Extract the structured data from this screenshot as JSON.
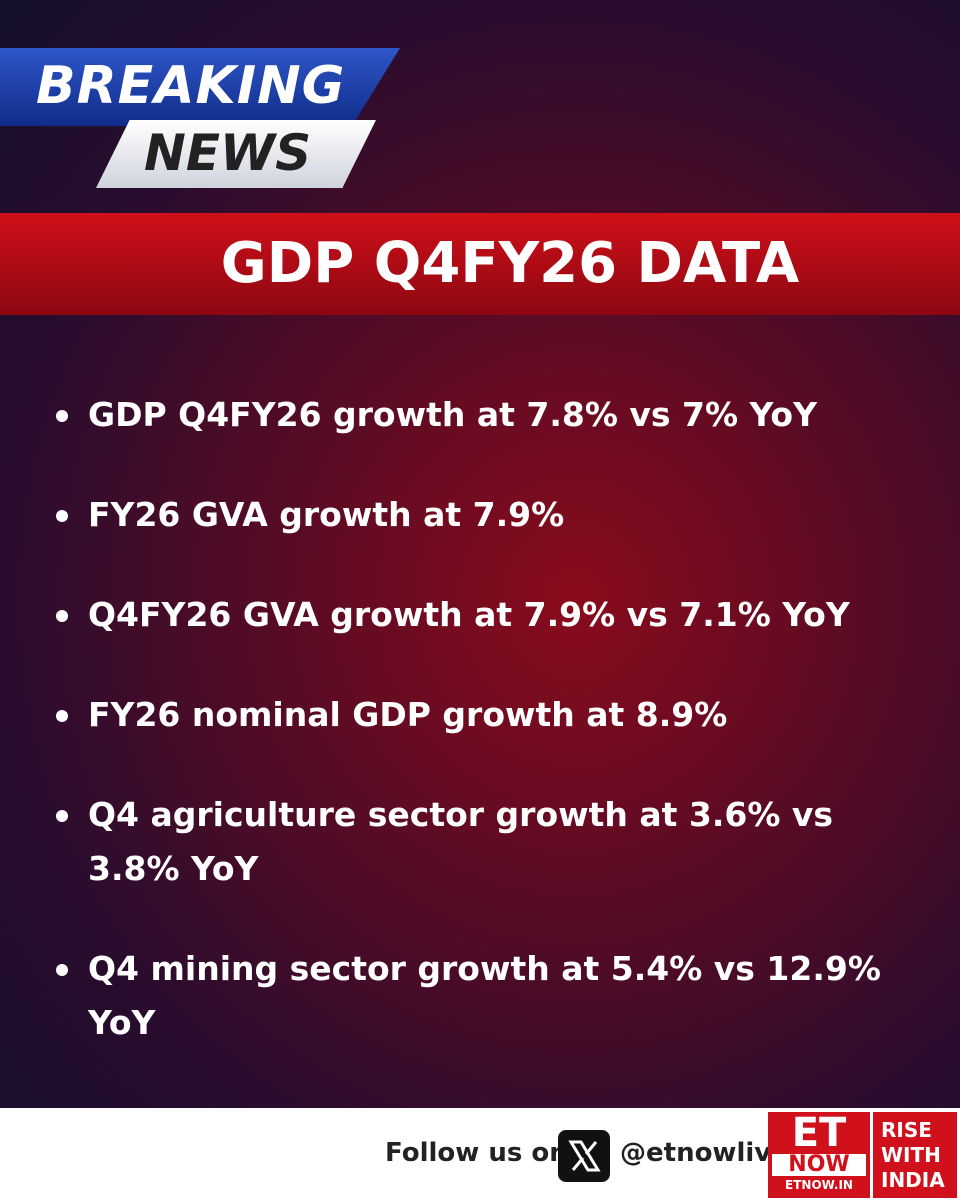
{
  "badge": {
    "line1": "BREAKING",
    "line2": "NEWS"
  },
  "headline": "GDP Q4FY26 DATA",
  "bullets": [
    "GDP Q4FY26 growth at 7.8% vs 7% YoY",
    "FY26 GVA growth at 7.9%",
    "Q4FY26 GVA growth at 7.9% vs 7.1% YoY",
    "FY26 nominal GDP growth at 8.9%",
    "Q4 agriculture sector growth at 3.6% vs 3.8% YoY",
    "Q4 mining sector growth at 5.4% vs 12.9% YoY"
  ],
  "footer": {
    "follow": "Follow us on",
    "handle": "@etnowlive",
    "logo": {
      "et": "ET",
      "now": "NOW",
      "site": "ETNOW.IN"
    },
    "tagline": [
      "RISE",
      "WITH",
      "INDIA"
    ]
  }
}
